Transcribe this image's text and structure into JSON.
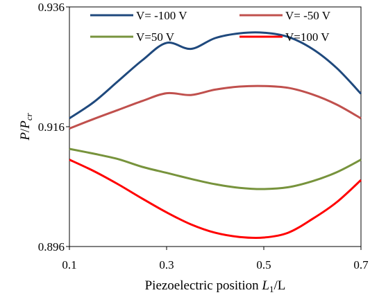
{
  "chart_data": {
    "type": "line",
    "title": "",
    "xlabel": {
      "prefix": "Piezoelectric position ",
      "var": "L",
      "sub": "1",
      "suffix": "/L"
    },
    "ylabel": {
      "var": "P",
      "mid": "/",
      "var2": "P",
      "sub": "cr"
    },
    "xlim": [
      0.1,
      0.7
    ],
    "ylim": [
      0.896,
      0.936
    ],
    "xticks": [
      "0.1",
      "0.3",
      "0.5",
      "0.7"
    ],
    "yticks": [
      "0.896",
      "0.916",
      "0.936"
    ],
    "grid": false,
    "legend_position": "top",
    "series": [
      {
        "name": "V= -100 V",
        "color": "#1F497D",
        "x": [
          0.1,
          0.15,
          0.2,
          0.25,
          0.3,
          0.35,
          0.4,
          0.45,
          0.5,
          0.55,
          0.6,
          0.65,
          0.7
        ],
        "y": [
          0.9174,
          0.9201,
          0.9236,
          0.9271,
          0.93,
          0.929,
          0.9308,
          0.9316,
          0.9317,
          0.931,
          0.929,
          0.9258,
          0.9215
        ]
      },
      {
        "name": "V= -50 V",
        "color": "#C0504D",
        "x": [
          0.1,
          0.15,
          0.2,
          0.25,
          0.3,
          0.35,
          0.4,
          0.45,
          0.5,
          0.55,
          0.6,
          0.65,
          0.7
        ],
        "y": [
          0.9157,
          0.9173,
          0.9188,
          0.9203,
          0.9216,
          0.9213,
          0.9222,
          0.9227,
          0.9228,
          0.9225,
          0.9214,
          0.9197,
          0.9174
        ]
      },
      {
        "name": "V=50 V",
        "color": "#77933C",
        "x": [
          0.1,
          0.15,
          0.2,
          0.25,
          0.3,
          0.35,
          0.4,
          0.45,
          0.5,
          0.55,
          0.6,
          0.65,
          0.7
        ],
        "y": [
          0.9123,
          0.9115,
          0.9106,
          0.9093,
          0.9083,
          0.9073,
          0.9064,
          0.9058,
          0.9056,
          0.9059,
          0.9069,
          0.9084,
          0.9105
        ]
      },
      {
        "name": "V=100 V",
        "color": "#FF0000",
        "x": [
          0.1,
          0.15,
          0.2,
          0.25,
          0.3,
          0.35,
          0.4,
          0.45,
          0.5,
          0.55,
          0.6,
          0.65,
          0.7
        ],
        "y": [
          0.9105,
          0.9086,
          0.9064,
          0.904,
          0.9017,
          0.8997,
          0.8983,
          0.8976,
          0.8975,
          0.8983,
          0.9006,
          0.9034,
          0.9071
        ]
      }
    ]
  }
}
